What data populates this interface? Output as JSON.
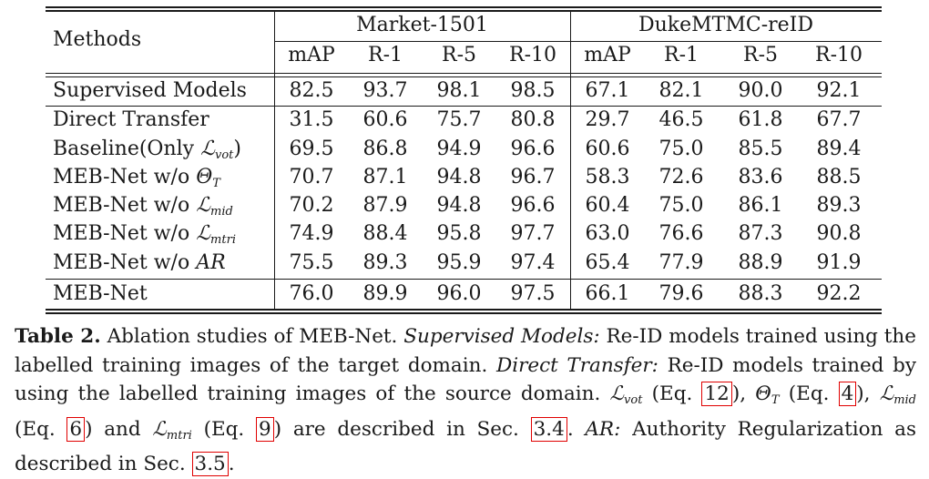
{
  "table": {
    "methods_header": "Methods",
    "groups": [
      "Market-1501",
      "DukeMTMC-reID"
    ],
    "metrics": [
      "mAP",
      "R-1",
      "R-5",
      "R-10",
      "mAP",
      "R-1",
      "R-5",
      "R-10"
    ],
    "rows": [
      {
        "method": "Supervised Models",
        "values": [
          "82.5",
          "93.7",
          "98.1",
          "98.5",
          "67.1",
          "82.1",
          "90.0",
          "92.1"
        ]
      },
      {
        "method": "Direct Transfer",
        "values": [
          "31.5",
          "60.6",
          "75.7",
          "80.8",
          "29.7",
          "46.5",
          "61.8",
          "67.7"
        ]
      },
      {
        "method": "Baseline(Only ℒ_vot)",
        "values": [
          "69.5",
          "86.8",
          "94.9",
          "96.6",
          "60.6",
          "75.0",
          "85.5",
          "89.4"
        ]
      },
      {
        "method": "MEB-Net w/o Θ_T",
        "values": [
          "70.7",
          "87.1",
          "94.8",
          "96.7",
          "58.3",
          "72.6",
          "83.6",
          "88.5"
        ]
      },
      {
        "method": "MEB-Net w/o ℒ_mid",
        "values": [
          "70.2",
          "87.9",
          "94.8",
          "96.6",
          "60.4",
          "75.0",
          "86.1",
          "89.3"
        ]
      },
      {
        "method": "MEB-Net w/o ℒ_mtri",
        "values": [
          "74.9",
          "88.4",
          "95.8",
          "97.7",
          "63.0",
          "76.6",
          "87.3",
          "90.8"
        ]
      },
      {
        "method": "MEB-Net w/o AR",
        "values": [
          "75.5",
          "89.3",
          "95.9",
          "97.4",
          "65.4",
          "77.9",
          "88.9",
          "91.9"
        ]
      },
      {
        "method": "MEB-Net",
        "values": [
          "76.0",
          "89.9",
          "96.0",
          "97.5",
          "66.1",
          "79.6",
          "88.3",
          "92.2"
        ]
      }
    ]
  },
  "caption": {
    "label": "Table 2.",
    "text1": "Ablation studies of MEB-Net.",
    "sup_label": "Supervised Models:",
    "sup_text": "Re-ID models trained using the labelled training images of the target domain.",
    "dt_label": "Direct Transfer:",
    "dt_text": "Re-ID models trained by using the labelled training images of the source domain.",
    "ref_vot": "12",
    "ref_theta": "4",
    "ref_mid": "6",
    "ref_mtri": "9",
    "sec1": "3.4",
    "ar_label": "AR:",
    "ar_text": "Authority Regularization as described in Sec.",
    "sec2": "3.5"
  }
}
